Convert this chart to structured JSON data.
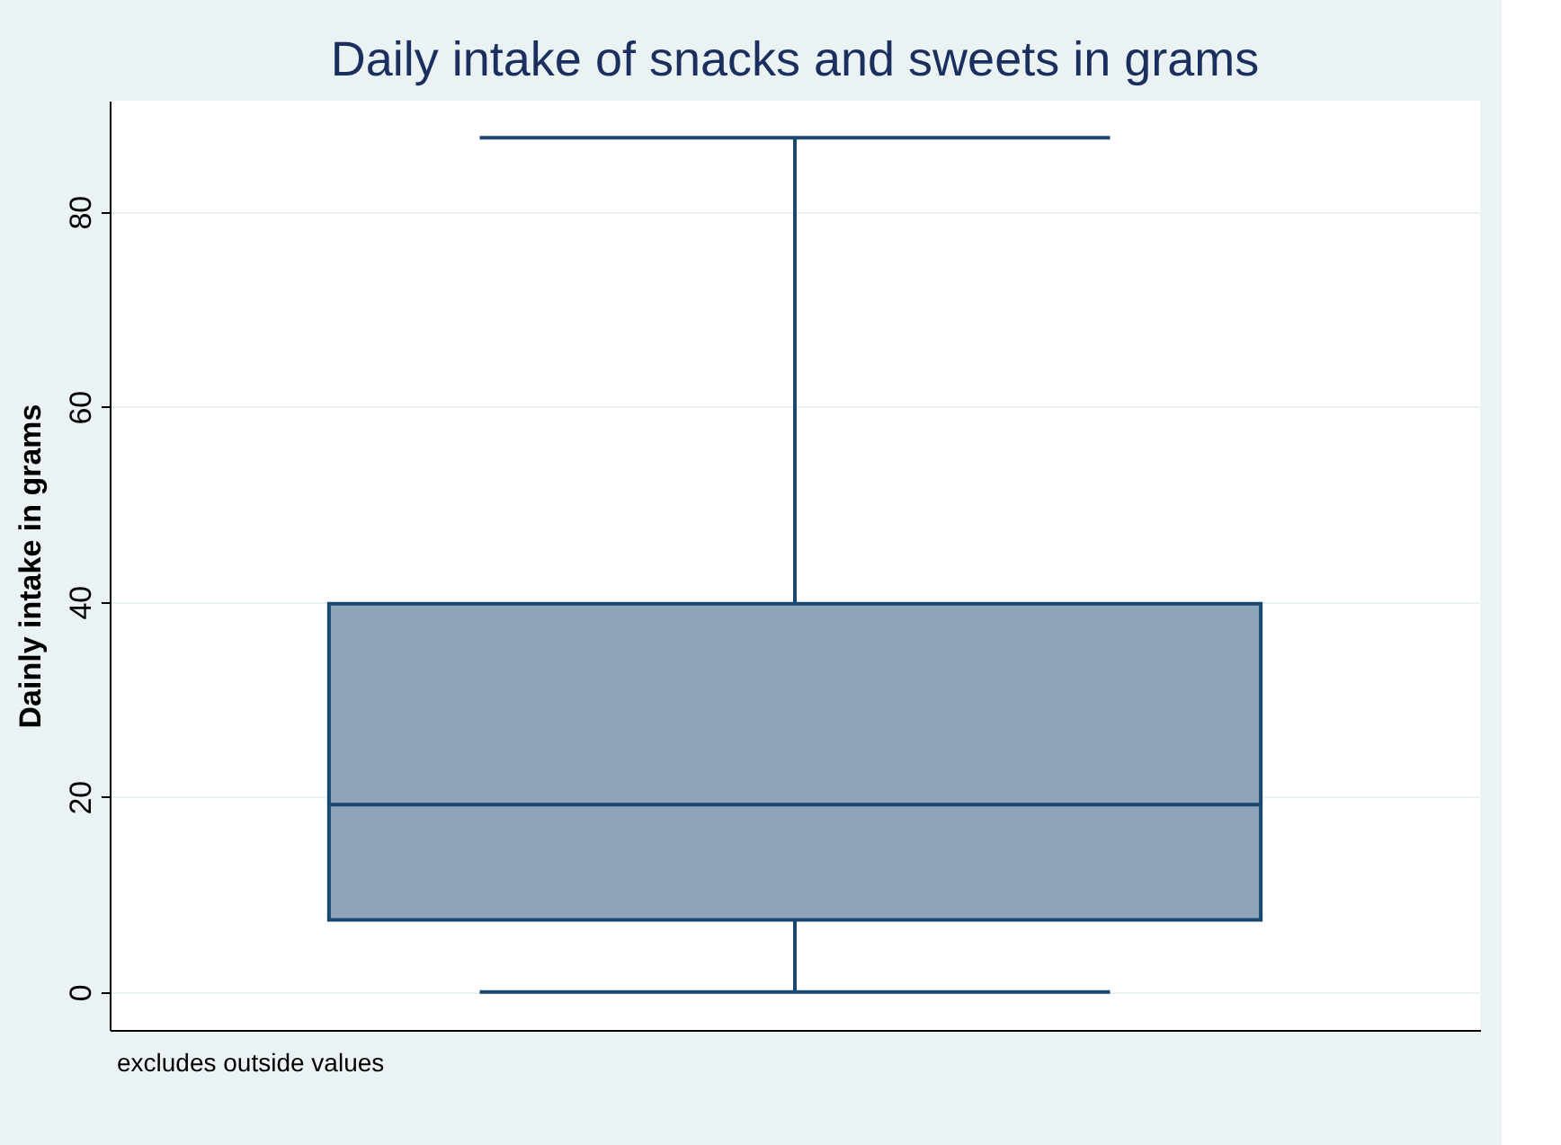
{
  "chart_data": {
    "type": "box",
    "title": "Daily intake of snacks and sweets in grams",
    "ylabel": "Dainly intake in grams",
    "categories": [
      null
    ],
    "boxes": [
      {
        "low": 0,
        "q1": 7.4,
        "median": 19.2,
        "q3": 39.8,
        "high": 87.6
      }
    ],
    "color": "#8ea5b9",
    "ylim": [
      -3.9,
      91.4
    ],
    "yticks": [
      0,
      20,
      40,
      60,
      80
    ],
    "grid": "y",
    "annotations": [
      "excludes outside values"
    ]
  }
}
